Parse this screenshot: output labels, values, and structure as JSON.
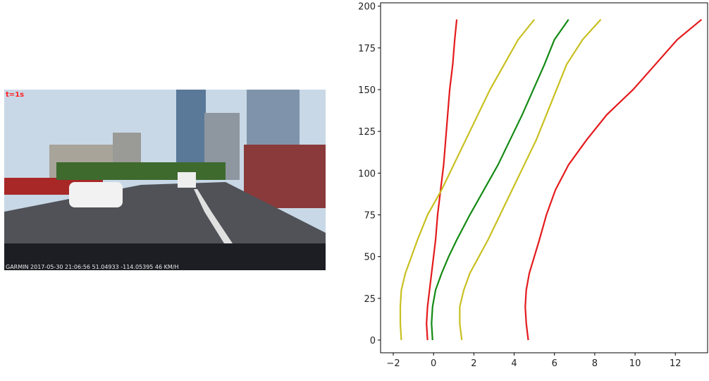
{
  "image": {
    "label": "t=1s",
    "caption": "GARMIN  2017-05-30 21:06:56  51.04933 -114.05395  46 KM/H"
  },
  "chart_data": {
    "type": "line",
    "y": [
      0,
      10,
      20,
      30,
      40,
      50,
      60,
      75,
      90,
      105,
      120,
      135,
      150,
      165,
      180,
      192
    ],
    "series": [
      {
        "color": "#e41a1c",
        "x": [
          -0.3,
          -0.35,
          -0.3,
          -0.2,
          -0.1,
          0,
          0.1,
          0.2,
          0.35,
          0.5,
          0.6,
          0.7,
          0.8,
          0.95,
          1.05,
          1.15
        ]
      },
      {
        "color": "#c8c020",
        "x": [
          -1.6,
          -1.65,
          -1.65,
          -1.6,
          -1.4,
          -1.1,
          -0.8,
          -0.3,
          0.4,
          1.0,
          1.6,
          2.2,
          2.8,
          3.5,
          4.2,
          5.0
        ]
      },
      {
        "color": "#138a13",
        "x": [
          -0.05,
          -0.1,
          -0.05,
          0.1,
          0.4,
          0.75,
          1.15,
          1.8,
          2.5,
          3.2,
          3.8,
          4.4,
          4.95,
          5.5,
          6.0,
          6.7
        ]
      },
      {
        "color": "#c8c020",
        "x": [
          1.4,
          1.3,
          1.3,
          1.5,
          1.8,
          2.25,
          2.7,
          3.3,
          3.9,
          4.5,
          5.1,
          5.6,
          6.1,
          6.6,
          7.4,
          8.3
        ]
      },
      {
        "color": "#e41a1c",
        "x": [
          4.7,
          4.6,
          4.55,
          4.6,
          4.75,
          5.0,
          5.25,
          5.6,
          6.05,
          6.7,
          7.6,
          8.6,
          9.9,
          11.0,
          12.1,
          13.3
        ]
      }
    ],
    "xlim": [
      -2.63,
      13.6
    ],
    "ylim": [
      -7.6,
      202
    ],
    "xticks": [
      {
        "value": -2,
        "label": "−2"
      },
      0,
      2,
      4,
      6,
      8,
      10,
      12
    ],
    "yticks": [
      0,
      25,
      50,
      75,
      100,
      125,
      150,
      175,
      200
    ]
  }
}
